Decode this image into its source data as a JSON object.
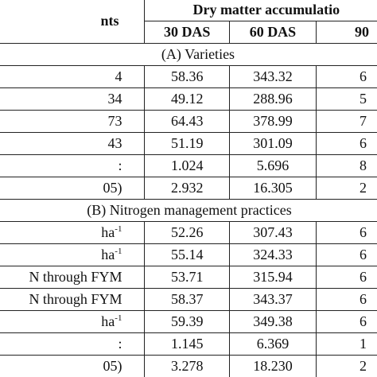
{
  "table": {
    "header_treatments": "nts",
    "header_group": "Dry matter accumulatio",
    "subheaders": [
      "30 DAS",
      "60 DAS",
      "90"
    ],
    "section_a": "(A) Varieties",
    "section_b": "(B) Nitrogen management practices",
    "rows_a": [
      {
        "label": "4",
        "v30": "58.36",
        "v60": "343.32",
        "v90": "6"
      },
      {
        "label": "34",
        "v30": "49.12",
        "v60": "288.96",
        "v90": "5"
      },
      {
        "label": "73",
        "v30": "64.43",
        "v60": "378.99",
        "v90": "7"
      },
      {
        "label": "43",
        "v30": "51.19",
        "v60": "301.09",
        "v90": "6"
      },
      {
        "label": ":",
        "v30": "1.024",
        "v60": "5.696",
        "v90": "8"
      },
      {
        "label": "05)",
        "v30": "2.932",
        "v60": "16.305",
        "v90": "2"
      }
    ],
    "rows_b": [
      {
        "label": "ha",
        "sup": "-1",
        "v30": "52.26",
        "v60": "307.43",
        "v90": "6"
      },
      {
        "label": "ha",
        "sup": "-1",
        "v30": "55.14",
        "v60": "324.33",
        "v90": "6"
      },
      {
        "label": "N through FYM",
        "sup": "",
        "v30": "53.71",
        "v60": "315.94",
        "v90": "6"
      },
      {
        "label": "N through FYM",
        "sup": "",
        "v30": "58.37",
        "v60": "343.37",
        "v90": "6"
      },
      {
        "label": "ha",
        "sup": "-1",
        "v30": "59.39",
        "v60": "349.38",
        "v90": "6"
      },
      {
        "label": ":",
        "sup": "",
        "v30": "1.145",
        "v60": "6.369",
        "v90": "1"
      },
      {
        "label": "05)",
        "sup": "",
        "v30": "3.278",
        "v60": "18.230",
        "v90": "2"
      }
    ]
  }
}
